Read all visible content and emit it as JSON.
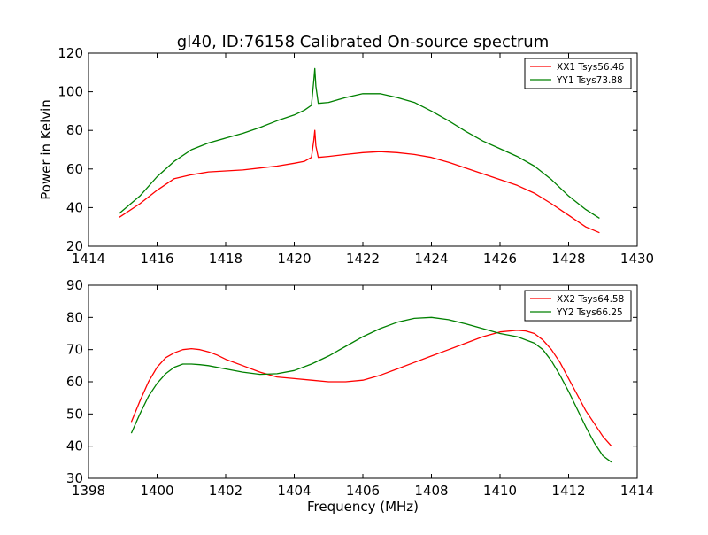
{
  "figure": {
    "title": "gl40, ID:76158 Calibrated On-source spectrum",
    "shared_ylabel": "Power in Kelvin",
    "shared_xlabel": "Frequency (MHz)"
  },
  "colors": {
    "red": "#ff0000",
    "green": "#008000"
  },
  "chart_data": [
    {
      "type": "line",
      "title": "gl40, ID:76158 Calibrated On-source spectrum",
      "xlabel": "",
      "ylabel": "Power in Kelvin",
      "xlim": [
        1414,
        1430
      ],
      "ylim": [
        20,
        120
      ],
      "xticks": [
        1414,
        1416,
        1418,
        1420,
        1422,
        1424,
        1426,
        1428,
        1430
      ],
      "yticks": [
        20,
        40,
        60,
        80,
        100,
        120
      ],
      "grid": false,
      "legend_position": "top-right",
      "series": [
        {
          "name": "XX1 Tsys56.46",
          "color": "#ff0000",
          "x": [
            1414.9,
            1415.5,
            1416.0,
            1416.5,
            1417.0,
            1417.5,
            1418.0,
            1418.5,
            1419.0,
            1419.5,
            1420.0,
            1420.3,
            1420.5,
            1420.57,
            1420.6,
            1420.63,
            1420.7,
            1421.0,
            1421.5,
            1422.0,
            1422.5,
            1423.0,
            1423.5,
            1424.0,
            1424.5,
            1425.0,
            1425.5,
            1426.0,
            1426.5,
            1427.0,
            1427.5,
            1428.0,
            1428.5,
            1428.9
          ],
          "y": [
            35,
            42,
            49,
            55,
            57,
            58.5,
            59,
            59.5,
            60.5,
            61.5,
            63,
            64,
            66,
            75,
            80,
            72,
            66,
            66.5,
            67.5,
            68.5,
            69,
            68.5,
            67.5,
            66,
            63.5,
            60.5,
            57.5,
            54.5,
            51.5,
            47.5,
            42,
            36,
            30,
            27
          ]
        },
        {
          "name": "YY1 Tsys73.88",
          "color": "#008000",
          "x": [
            1414.9,
            1415.5,
            1416.0,
            1416.5,
            1417.0,
            1417.5,
            1418.0,
            1418.5,
            1419.0,
            1419.5,
            1420.0,
            1420.3,
            1420.5,
            1420.57,
            1420.6,
            1420.63,
            1420.7,
            1421.0,
            1421.5,
            1422.0,
            1422.5,
            1423.0,
            1423.5,
            1424.0,
            1424.5,
            1425.0,
            1425.5,
            1426.0,
            1426.5,
            1427.0,
            1427.5,
            1428.0,
            1428.5,
            1428.9
          ],
          "y": [
            37,
            46,
            56,
            64,
            70,
            73.5,
            76,
            78.5,
            81.5,
            85,
            88,
            90.5,
            93,
            106,
            112,
            103,
            94,
            94.5,
            97,
            99,
            99,
            97,
            94.5,
            90,
            85,
            79.5,
            74.5,
            70.5,
            66.5,
            61.5,
            54.5,
            46,
            39,
            34.5
          ]
        }
      ]
    },
    {
      "type": "line",
      "title": "",
      "xlabel": "Frequency (MHz)",
      "ylabel": "",
      "xlim": [
        1398,
        1414
      ],
      "ylim": [
        30,
        90
      ],
      "xticks": [
        1398,
        1400,
        1402,
        1404,
        1406,
        1408,
        1410,
        1412,
        1414
      ],
      "yticks": [
        30,
        40,
        50,
        60,
        70,
        80,
        90
      ],
      "grid": false,
      "legend_position": "top-right",
      "series": [
        {
          "name": "XX2 Tsys64.58",
          "color": "#ff0000",
          "x": [
            1399.25,
            1399.5,
            1399.75,
            1400.0,
            1400.25,
            1400.5,
            1400.75,
            1401.0,
            1401.25,
            1401.5,
            1401.75,
            1402.0,
            1402.5,
            1403.0,
            1403.5,
            1404.0,
            1404.5,
            1405.0,
            1405.5,
            1406.0,
            1406.5,
            1407.0,
            1407.5,
            1408.0,
            1408.5,
            1409.0,
            1409.5,
            1410.0,
            1410.5,
            1410.75,
            1411.0,
            1411.25,
            1411.5,
            1411.75,
            1412.0,
            1412.25,
            1412.5,
            1412.75,
            1413.0,
            1413.25
          ],
          "y": [
            47.5,
            54,
            60,
            64.5,
            67.5,
            69,
            70,
            70.3,
            70,
            69.3,
            68.3,
            67,
            65,
            63,
            61.5,
            61,
            60.5,
            60,
            60,
            60.5,
            62,
            64,
            66,
            68,
            70,
            72,
            74,
            75.5,
            76,
            75.8,
            75,
            73,
            70,
            66,
            61,
            56,
            51,
            47,
            43,
            40
          ]
        },
        {
          "name": "YY2 Tsys66.25",
          "color": "#008000",
          "x": [
            1399.25,
            1399.5,
            1399.75,
            1400.0,
            1400.25,
            1400.5,
            1400.75,
            1401.0,
            1401.25,
            1401.5,
            1402.0,
            1402.5,
            1403.0,
            1403.5,
            1404.0,
            1404.5,
            1405.0,
            1405.5,
            1406.0,
            1406.5,
            1407.0,
            1407.5,
            1408.0,
            1408.5,
            1409.0,
            1409.5,
            1410.0,
            1410.5,
            1411.0,
            1411.25,
            1411.5,
            1411.75,
            1412.0,
            1412.25,
            1412.5,
            1412.75,
            1413.0,
            1413.25
          ],
          "y": [
            44,
            50,
            55.5,
            59.5,
            62.5,
            64.5,
            65.5,
            65.5,
            65.3,
            65,
            64,
            63,
            62.3,
            62.5,
            63.5,
            65.5,
            68,
            71,
            74,
            76.5,
            78.5,
            79.7,
            80,
            79.3,
            78,
            76.5,
            75,
            74,
            72,
            70,
            66.5,
            62,
            57,
            51.5,
            46,
            41,
            37,
            35
          ]
        }
      ]
    }
  ]
}
